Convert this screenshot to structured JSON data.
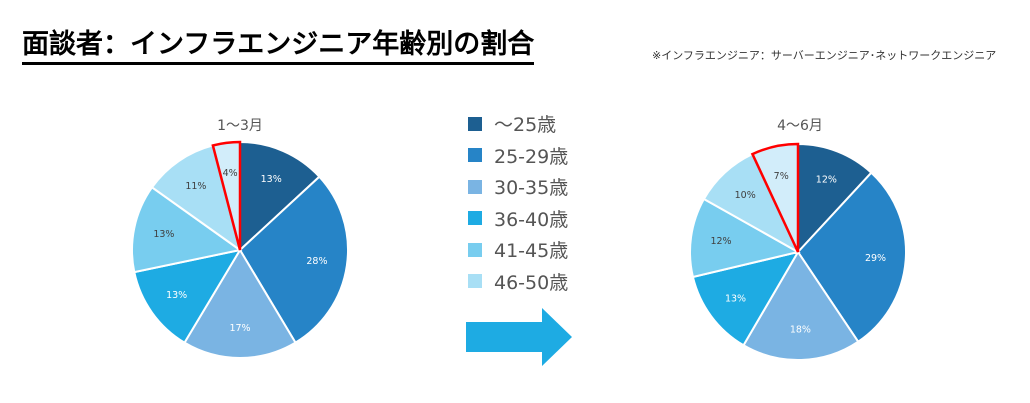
{
  "title": "面談者：インフラエンジニア年齢別の割合",
  "note": "※インフラエンジニア：サーバーエンジニア･ネットワークエンジニア",
  "legend": [
    {
      "label": "～25歳",
      "color": "#1d5f91"
    },
    {
      "label": "25-29歳",
      "color": "#2684c7"
    },
    {
      "label": "30-35歳",
      "color": "#7ab4e3"
    },
    {
      "label": "36-40歳",
      "color": "#1eabe3"
    },
    {
      "label": "41-45歳",
      "color": "#78cdef"
    },
    {
      "label": "46-50歳",
      "color": "#a8dff5"
    }
  ],
  "highlight_color": "#ff0000",
  "arrow_color": "#1eabe3",
  "chart_data": [
    {
      "type": "pie",
      "title": "1～3月",
      "series": [
        {
          "name": "～25歳",
          "value": 13
        },
        {
          "name": "25-29歳",
          "value": 28
        },
        {
          "name": "30-35歳",
          "value": 17
        },
        {
          "name": "36-40歳",
          "value": 13
        },
        {
          "name": "41-45歳",
          "value": 13
        },
        {
          "name": "46-50歳",
          "value": 11
        },
        {
          "name": "",
          "value": 4,
          "color": "#d2edfa",
          "highlighted": true
        }
      ],
      "labels": [
        "13%",
        "28%",
        "17%",
        "13%",
        "13%",
        "11%",
        "4%"
      ]
    },
    {
      "type": "pie",
      "title": "4～6月",
      "series": [
        {
          "name": "～25歳",
          "value": 12
        },
        {
          "name": "25-29歳",
          "value": 29
        },
        {
          "name": "30-35歳",
          "value": 18
        },
        {
          "name": "36-40歳",
          "value": 13
        },
        {
          "name": "41-45歳",
          "value": 12
        },
        {
          "name": "46-50歳",
          "value": 10
        },
        {
          "name": "",
          "value": 7,
          "color": "#d2edfa",
          "highlighted": true
        }
      ],
      "labels": [
        "12%",
        "29%",
        "18%",
        "13%",
        "12%",
        "10%",
        "7%"
      ]
    }
  ]
}
